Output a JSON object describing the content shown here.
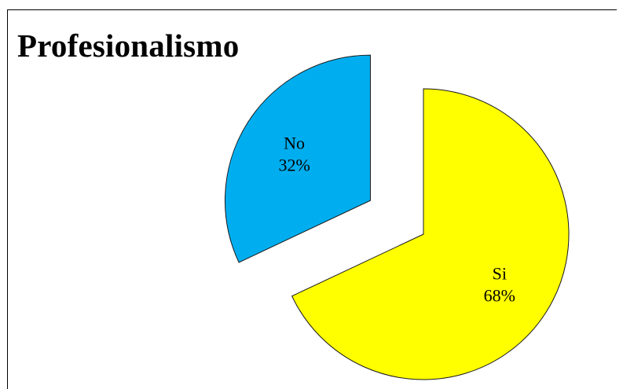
{
  "chart_data": {
    "type": "pie",
    "title": "Profesionalismo",
    "categories": [
      "Si",
      "No"
    ],
    "values": [
      68,
      32
    ],
    "labels": [
      {
        "name": "Si",
        "percent": "68%"
      },
      {
        "name": "No",
        "percent": "32%"
      }
    ],
    "colors": [
      "#ffff00",
      "#00aeef"
    ],
    "exploded": true,
    "legend": "none"
  }
}
